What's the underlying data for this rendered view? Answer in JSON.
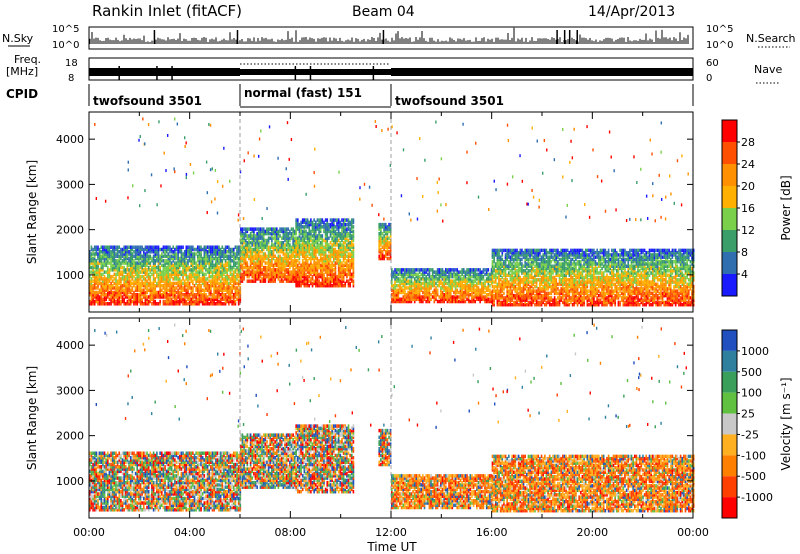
{
  "header": {
    "station": "Rankin Inlet (fitACF)",
    "beam": "Beam 04",
    "date": "14/Apr/2013"
  },
  "sky_panel": {
    "left_label": "N.Sky",
    "right_label": "N.Search",
    "left_ticks": [
      "10^5",
      "10^0"
    ],
    "right_ticks": [
      "10^5",
      "10^0"
    ]
  },
  "freq_panel": {
    "left_label_1": "Freq.",
    "left_label_2": "[MHz]",
    "left_ticks": [
      "18",
      "8"
    ],
    "right_label": "Nave",
    "right_ticks": [
      "60",
      "0"
    ]
  },
  "cpid_panel": {
    "label": "CPID",
    "segments": [
      {
        "name": "twofsound 3501",
        "start_h": 0,
        "end_h": 6
      },
      {
        "name": "normal (fast) 151",
        "start_h": 6,
        "end_h": 12
      },
      {
        "name": "twofsound 3501",
        "start_h": 12,
        "end_h": 24
      }
    ]
  },
  "chart_data": [
    {
      "type": "heatmap",
      "name": "Power",
      "ylabel": "Slant Range [km]",
      "xlim_hours": [
        0,
        24
      ],
      "ylim_km": [
        180,
        4600
      ],
      "yticks": [
        1000,
        2000,
        3000,
        4000
      ],
      "colorbar_label": "Power [dB]",
      "colorbar_ticks": [
        "28",
        "24",
        "20",
        "16",
        "12",
        "8",
        "4"
      ],
      "colors": [
        "#ff0000",
        "#ff5000",
        "#ff9000",
        "#ffb000",
        "#7ad04a",
        "#3a9e6a",
        "#2f6fb0",
        "#1a1aff"
      ]
    },
    {
      "type": "heatmap",
      "name": "Velocity",
      "ylabel": "Slant Range [km]",
      "xlabel": "Time UT",
      "xlim_hours": [
        0,
        24
      ],
      "ylim_km": [
        180,
        4600
      ],
      "yticks": [
        1000,
        2000,
        3000,
        4000
      ],
      "xticks": [
        "00:00",
        "04:00",
        "08:00",
        "12:00",
        "16:00",
        "20:00",
        "00:00"
      ],
      "colorbar_label": "Velocity [m s⁻¹]",
      "colorbar_ticks": [
        "1000",
        "500",
        "100",
        "25",
        "-25",
        "-100",
        "-500",
        "-1000"
      ],
      "colors": [
        "#2050c0",
        "#2f7f9f",
        "#3a9f5a",
        "#60c040",
        "#c8c8c8",
        "#ffb020",
        "#ff8000",
        "#ff4000",
        "#ff0000"
      ]
    }
  ]
}
